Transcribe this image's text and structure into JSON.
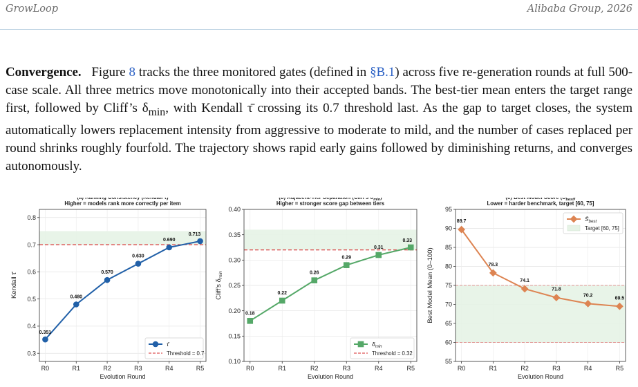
{
  "header": {
    "left": "GrowLoop",
    "right": "Alibaba Group, 2026"
  },
  "paragraph": {
    "lead": "Convergence.",
    "t1": "Figure ",
    "ref_fig": "8",
    "t2": " tracks the three monitored gates (defined in ",
    "ref_sec": "§B.1",
    "t3": ") across five re-generation rounds at full 500-case scale. All three metrics move monotonically into their accepted bands. The best-tier mean enters the target range first, followed by Cliff’s δ",
    "sub_min": "min",
    "t4": ", with Kendall τ̄ crossing its 0.7 threshold last. As the gap to target closes, the system automatically lowers replacement intensity from aggressive to moderate to mild, and the number of cases replaced per round shrinks roughly fourfold. The trajectory shows rapid early gains followed by diminishing returns, and converges autonomously."
  },
  "colors": {
    "blue": "#2160a8",
    "green": "#55a868",
    "orange": "#dd8452",
    "red": "#d62728",
    "band": "#e9f4e9"
  },
  "chart_data": [
    {
      "type": "line",
      "title": "(a) Ranking Consistency (Kendall τ̄)",
      "subtitle": "Higher = models rank more correctly per item",
      "xlabel": "Evolution Round",
      "ylabel": "Kendall τ̄",
      "categories": [
        "R0",
        "R1",
        "R2",
        "R3",
        "R4",
        "R5"
      ],
      "series": [
        {
          "name": "τ̄",
          "values": [
            0.351,
            0.48,
            0.57,
            0.63,
            0.69,
            0.713
          ],
          "color": "#2160a8",
          "marker": "circle"
        }
      ],
      "value_labels": [
        "0.351",
        "0.480",
        "0.570",
        "0.630",
        "0.690",
        "0.713"
      ],
      "threshold": {
        "value": 0.7,
        "label": "Threshold = 0.7"
      },
      "target_band": [
        0.7,
        0.75
      ],
      "ylim": [
        0.27,
        0.83
      ],
      "yticks": [
        0.3,
        0.4,
        0.5,
        0.6,
        0.7,
        0.8
      ],
      "ytick_labels": [
        "0.3",
        "0.4",
        "0.5",
        "0.6",
        "0.7",
        "0.8"
      ],
      "legend_position": "lower-right",
      "grid": true
    },
    {
      "type": "line",
      "title": "(b) Adjacent-Tier Separation (Cliff's δ",
      "title_sub": "min",
      "title_end": ")",
      "subtitle": "Higher = stronger score gap between tiers",
      "xlabel": "Evolution Round",
      "ylabel": "Cliff's δ",
      "ylabel_sub": "min",
      "categories": [
        "R0",
        "R1",
        "R2",
        "R3",
        "R4",
        "R5"
      ],
      "series": [
        {
          "name": "δ",
          "name_sub": "min",
          "values": [
            0.18,
            0.22,
            0.26,
            0.29,
            0.31,
            0.325
          ],
          "color": "#55a868",
          "marker": "square"
        }
      ],
      "value_labels": [
        "0.18",
        "0.22",
        "0.26",
        "0.29",
        "0.31",
        "0.33"
      ],
      "threshold": {
        "value": 0.32,
        "label": "Threshold = 0.32"
      },
      "target_band": [
        0.32,
        0.36
      ],
      "ylim": [
        0.1,
        0.4
      ],
      "yticks": [
        0.1,
        0.15,
        0.2,
        0.25,
        0.3,
        0.35,
        0.4
      ],
      "ytick_labels": [
        "0.10",
        "0.15",
        "0.20",
        "0.25",
        "0.30",
        "0.35",
        "0.40"
      ],
      "legend_position": "lower-right",
      "grid": true
    },
    {
      "type": "line",
      "title": "(c) Best Model Score (S̄",
      "title_sub": "best",
      "title_end": ")",
      "subtitle": "Lower = harder benchmark, target [60, 75]",
      "xlabel": "Evolution Round",
      "ylabel": "Best Model Mean (0–100)",
      "categories": [
        "R0",
        "R1",
        "R2",
        "R3",
        "R4",
        "R5"
      ],
      "series": [
        {
          "name": "S̄",
          "name_sub": "best",
          "values": [
            89.7,
            78.3,
            74.1,
            71.8,
            70.2,
            69.5
          ],
          "color": "#dd8452",
          "marker": "diamond"
        }
      ],
      "value_labels": [
        "89.7",
        "78.3",
        "74.1",
        "71.8",
        "70.2",
        "69.5"
      ],
      "band_label": "Target [60, 75]",
      "target_band": [
        60,
        75
      ],
      "ylim": [
        55,
        95
      ],
      "yticks": [
        55,
        60,
        65,
        70,
        75,
        80,
        85,
        90,
        95
      ],
      "ytick_labels": [
        "55",
        "60",
        "65",
        "70",
        "75",
        "80",
        "85",
        "90",
        "95"
      ],
      "legend_position": "top-right",
      "grid": true
    }
  ]
}
